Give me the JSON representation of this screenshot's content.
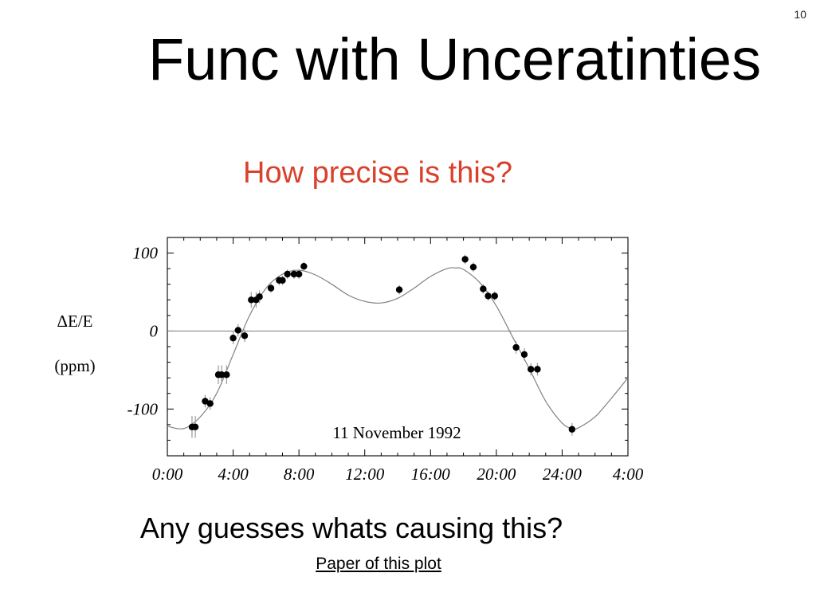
{
  "slide": {
    "number": "10",
    "title": "Func with Unceratinties",
    "subtitle": "How precise is this?",
    "question": "Any guesses whats causing this?",
    "link_text": "Paper of this plot",
    "subtitle_color": "#d9412c"
  },
  "chart_data": {
    "type": "scatter",
    "title": "",
    "annotation": "11 November 1992",
    "ylabel_lines": [
      "ΔE/E",
      "(ppm)"
    ],
    "x_unit": "hours",
    "xlim": [
      0,
      28
    ],
    "ylim": [
      -160,
      120
    ],
    "x_ticks": [
      {
        "value": 0,
        "label": "0:00"
      },
      {
        "value": 4,
        "label": "4:00"
      },
      {
        "value": 8,
        "label": "8:00"
      },
      {
        "value": 12,
        "label": "12:00"
      },
      {
        "value": 16,
        "label": "16:00"
      },
      {
        "value": 20,
        "label": "20:00"
      },
      {
        "value": 24,
        "label": "24:00"
      },
      {
        "value": 28,
        "label": "4:00"
      }
    ],
    "y_ticks": [
      {
        "value": 100,
        "label": "100"
      },
      {
        "value": 0,
        "label": "0"
      },
      {
        "value": -100,
        "label": "-100"
      }
    ],
    "zero_line": true,
    "grid": false,
    "series": [
      {
        "kind": "measurements",
        "color": "#000000",
        "error_color": "#999999",
        "points": [
          {
            "x": 1.5,
            "y": -123,
            "err": 14
          },
          {
            "x": 1.7,
            "y": -123,
            "err": 14
          },
          {
            "x": 2.3,
            "y": -90,
            "err": 8
          },
          {
            "x": 2.6,
            "y": -93,
            "err": 8
          },
          {
            "x": 3.1,
            "y": -56,
            "err": 12
          },
          {
            "x": 3.3,
            "y": -56,
            "err": 12
          },
          {
            "x": 3.6,
            "y": -56,
            "err": 12
          },
          {
            "x": 4.0,
            "y": -9,
            "err": 8
          },
          {
            "x": 4.3,
            "y": 1,
            "err": 8
          },
          {
            "x": 4.7,
            "y": -6,
            "err": 8
          },
          {
            "x": 5.1,
            "y": 40,
            "err": 10
          },
          {
            "x": 5.4,
            "y": 40,
            "err": 10
          },
          {
            "x": 5.6,
            "y": 44,
            "err": 8
          },
          {
            "x": 6.3,
            "y": 55,
            "err": 6
          },
          {
            "x": 6.8,
            "y": 65,
            "err": 6
          },
          {
            "x": 7.0,
            "y": 65,
            "err": 6
          },
          {
            "x": 7.3,
            "y": 73,
            "err": 6
          },
          {
            "x": 7.7,
            "y": 73,
            "err": 6
          },
          {
            "x": 8.0,
            "y": 73,
            "err": 6
          },
          {
            "x": 8.3,
            "y": 83,
            "err": 6
          },
          {
            "x": 14.1,
            "y": 53,
            "err": 6
          },
          {
            "x": 18.1,
            "y": 92,
            "err": 6
          },
          {
            "x": 18.6,
            "y": 82,
            "err": 6
          },
          {
            "x": 19.2,
            "y": 54,
            "err": 6
          },
          {
            "x": 19.5,
            "y": 45,
            "err": 6
          },
          {
            "x": 19.9,
            "y": 45,
            "err": 6
          },
          {
            "x": 21.2,
            "y": -21,
            "err": 8
          },
          {
            "x": 21.7,
            "y": -30,
            "err": 8
          },
          {
            "x": 22.1,
            "y": -49,
            "err": 8
          },
          {
            "x": 22.5,
            "y": -49,
            "err": 8
          },
          {
            "x": 24.6,
            "y": -126,
            "err": 8
          }
        ]
      },
      {
        "kind": "model-curve",
        "color": "#808080",
        "points": [
          [
            0,
            -122
          ],
          [
            1,
            -125
          ],
          [
            2,
            -110
          ],
          [
            3,
            -80
          ],
          [
            4,
            -30
          ],
          [
            5,
            20
          ],
          [
            6,
            55
          ],
          [
            7,
            73
          ],
          [
            8,
            78
          ],
          [
            9,
            72
          ],
          [
            10,
            60
          ],
          [
            11,
            46
          ],
          [
            12,
            38
          ],
          [
            13,
            36
          ],
          [
            14,
            42
          ],
          [
            15,
            55
          ],
          [
            16,
            70
          ],
          [
            17,
            80
          ],
          [
            17.5,
            81
          ],
          [
            18,
            79
          ],
          [
            19,
            62
          ],
          [
            20,
            32
          ],
          [
            21,
            -8
          ],
          [
            22,
            -48
          ],
          [
            23,
            -90
          ],
          [
            24,
            -118
          ],
          [
            24.6,
            -125
          ],
          [
            25,
            -124
          ],
          [
            26,
            -110
          ],
          [
            27,
            -86
          ],
          [
            28,
            -60
          ]
        ]
      }
    ]
  }
}
